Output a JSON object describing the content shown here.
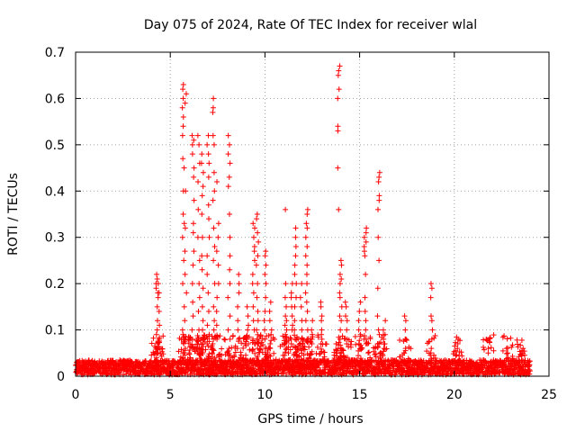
{
  "chart_data": {
    "type": "scatter",
    "title": "Day 075 of 2024, Rate Of TEC Index for receiver wlal",
    "xlabel": "GPS time / hours",
    "ylabel": "ROTI / TECUs",
    "xlim": [
      0,
      25
    ],
    "ylim": [
      0,
      0.7
    ],
    "x_ticks": [
      "0",
      "5",
      "10",
      "15",
      "20",
      "25"
    ],
    "y_ticks": [
      "0",
      "0.1",
      "0.2",
      "0.3",
      "0.4",
      "0.5",
      "0.6",
      "0.7"
    ],
    "x_tick_values": [
      0,
      5,
      10,
      15,
      20,
      25
    ],
    "y_tick_values": [
      0,
      0.1,
      0.2,
      0.3,
      0.4,
      0.5,
      0.6,
      0.7
    ],
    "grid": true,
    "marker": "+",
    "marker_color": "#ff0000",
    "baseline": {
      "x_range": [
        0,
        24
      ],
      "y_range": [
        0.003,
        0.035
      ]
    },
    "bursts": [
      {
        "x": 4.3,
        "y": [
          0.22,
          0.21,
          0.2,
          0.19,
          0.18,
          0.17,
          0.15,
          0.12,
          0.1,
          0.09,
          0.07,
          0.06,
          0.05,
          0.04
        ]
      },
      {
        "x": 4.4,
        "y": [
          0.2,
          0.18,
          0.14,
          0.11,
          0.08,
          0.06,
          0.05
        ]
      },
      {
        "x": 5.7,
        "y": [
          0.63,
          0.62,
          0.6,
          0.58,
          0.56,
          0.54,
          0.52,
          0.47,
          0.45,
          0.4,
          0.35,
          0.33,
          0.3,
          0.25,
          0.2,
          0.15,
          0.1,
          0.09,
          0.07,
          0.05
        ]
      },
      {
        "x": 5.8,
        "y": [
          0.61,
          0.59,
          0.4,
          0.32,
          0.27,
          0.22,
          0.18,
          0.12,
          0.08,
          0.06
        ]
      },
      {
        "x": 6.2,
        "y": [
          0.52,
          0.51,
          0.5,
          0.48,
          0.45,
          0.43,
          0.38,
          0.33,
          0.31,
          0.27,
          0.24,
          0.2,
          0.16,
          0.13,
          0.1,
          0.08,
          0.06
        ]
      },
      {
        "x": 6.5,
        "y": [
          0.52,
          0.5,
          0.46,
          0.42,
          0.36,
          0.3,
          0.25,
          0.2,
          0.17,
          0.14,
          0.1,
          0.08,
          0.06,
          0.05
        ]
      },
      {
        "x": 6.7,
        "y": [
          0.48,
          0.46,
          0.44,
          0.41,
          0.39,
          0.35,
          0.3,
          0.26,
          0.23,
          0.19,
          0.15,
          0.12,
          0.1,
          0.08,
          0.07
        ]
      },
      {
        "x": 7.0,
        "y": [
          0.52,
          0.5,
          0.48,
          0.46,
          0.43,
          0.37,
          0.34,
          0.3,
          0.26,
          0.22,
          0.18,
          0.14,
          0.11,
          0.09,
          0.07
        ]
      },
      {
        "x": 7.3,
        "y": [
          0.6,
          0.58,
          0.57,
          0.52,
          0.5,
          0.44,
          0.4,
          0.38,
          0.32,
          0.28,
          0.25,
          0.2,
          0.15,
          0.12,
          0.1,
          0.07
        ]
      },
      {
        "x": 7.5,
        "y": [
          0.42,
          0.33,
          0.3,
          0.27,
          0.24,
          0.2,
          0.17,
          0.14,
          0.11,
          0.08
        ]
      },
      {
        "x": 8.1,
        "y": [
          0.52,
          0.5,
          0.48,
          0.46,
          0.43,
          0.41,
          0.35,
          0.3,
          0.26,
          0.23,
          0.2,
          0.17,
          0.13,
          0.1,
          0.08,
          0.06
        ]
      },
      {
        "x": 8.6,
        "y": [
          0.22,
          0.2,
          0.18,
          0.15,
          0.12,
          0.1,
          0.08,
          0.06
        ]
      },
      {
        "x": 9.1,
        "y": [
          0.15,
          0.13,
          0.11,
          0.1,
          0.08,
          0.07
        ]
      },
      {
        "x": 9.4,
        "y": [
          0.33,
          0.32,
          0.3,
          0.28,
          0.27,
          0.25,
          0.22,
          0.2,
          0.18,
          0.15,
          0.12,
          0.1,
          0.08,
          0.07
        ]
      },
      {
        "x": 9.6,
        "y": [
          0.35,
          0.34,
          0.31,
          0.29,
          0.26,
          0.24,
          0.2,
          0.17,
          0.14,
          0.12,
          0.1,
          0.08,
          0.06
        ]
      },
      {
        "x": 10.0,
        "y": [
          0.27,
          0.26,
          0.24,
          0.22,
          0.2,
          0.17,
          0.14,
          0.12,
          0.1,
          0.08,
          0.06
        ]
      },
      {
        "x": 10.3,
        "y": [
          0.16,
          0.14,
          0.12,
          0.1,
          0.09,
          0.07,
          0.06
        ]
      },
      {
        "x": 11.1,
        "y": [
          0.36,
          0.2,
          0.17,
          0.15,
          0.13,
          0.12,
          0.11,
          0.1,
          0.09,
          0.08,
          0.07
        ]
      },
      {
        "x": 11.4,
        "y": [
          0.2,
          0.18,
          0.17,
          0.15,
          0.13,
          0.11,
          0.1,
          0.08,
          0.07
        ]
      },
      {
        "x": 11.6,
        "y": [
          0.32,
          0.3,
          0.28,
          0.26,
          0.24,
          0.22,
          0.2,
          0.17,
          0.15,
          0.12,
          0.1,
          0.08
        ]
      },
      {
        "x": 11.9,
        "y": [
          0.2,
          0.17,
          0.15,
          0.12,
          0.1,
          0.08,
          0.06
        ]
      },
      {
        "x": 12.2,
        "y": [
          0.36,
          0.35,
          0.33,
          0.32,
          0.3,
          0.28,
          0.26,
          0.24,
          0.22,
          0.2,
          0.18,
          0.16,
          0.14,
          0.12,
          0.1,
          0.08
        ]
      },
      {
        "x": 12.5,
        "y": [
          0.12,
          0.1,
          0.09,
          0.08,
          0.07
        ]
      },
      {
        "x": 13.0,
        "y": [
          0.16,
          0.15,
          0.13,
          0.12,
          0.1,
          0.09,
          0.08,
          0.07
        ]
      },
      {
        "x": 13.9,
        "y": [
          0.67,
          0.66,
          0.65,
          0.62,
          0.6,
          0.54,
          0.53,
          0.45,
          0.36
        ]
      },
      {
        "x": 14.0,
        "y": [
          0.25,
          0.24,
          0.22,
          0.21,
          0.2,
          0.18,
          0.17,
          0.15,
          0.13,
          0.12,
          0.1,
          0.08,
          0.06
        ]
      },
      {
        "x": 14.3,
        "y": [
          0.16,
          0.15,
          0.13,
          0.12,
          0.1,
          0.08,
          0.07
        ]
      },
      {
        "x": 15.0,
        "y": [
          0.16,
          0.14,
          0.12,
          0.1,
          0.09,
          0.07,
          0.06
        ]
      },
      {
        "x": 15.3,
        "y": [
          0.32,
          0.31,
          0.3,
          0.29,
          0.28,
          0.27,
          0.26,
          0.22,
          0.17,
          0.14,
          0.12,
          0.1,
          0.08,
          0.07
        ]
      },
      {
        "x": 16.0,
        "y": [
          0.44,
          0.43,
          0.42,
          0.39,
          0.38,
          0.36,
          0.3,
          0.25,
          0.19,
          0.13,
          0.1,
          0.09,
          0.07
        ]
      },
      {
        "x": 16.3,
        "y": [
          0.12,
          0.1,
          0.09,
          0.08,
          0.07,
          0.06
        ]
      },
      {
        "x": 17.4,
        "y": [
          0.13,
          0.12,
          0.1,
          0.08,
          0.06,
          0.05
        ]
      },
      {
        "x": 18.8,
        "y": [
          0.2,
          0.19,
          0.17,
          0.13,
          0.12,
          0.1,
          0.08,
          0.06
        ]
      },
      {
        "x": 20.2,
        "y": [
          0.08,
          0.07,
          0.06
        ]
      },
      {
        "x": 21.8,
        "y": [
          0.06,
          0.05
        ]
      },
      {
        "x": 22.8,
        "y": [
          0.06,
          0.05,
          0.04
        ]
      },
      {
        "x": 23.6,
        "y": [
          0.06,
          0.05
        ]
      }
    ]
  }
}
